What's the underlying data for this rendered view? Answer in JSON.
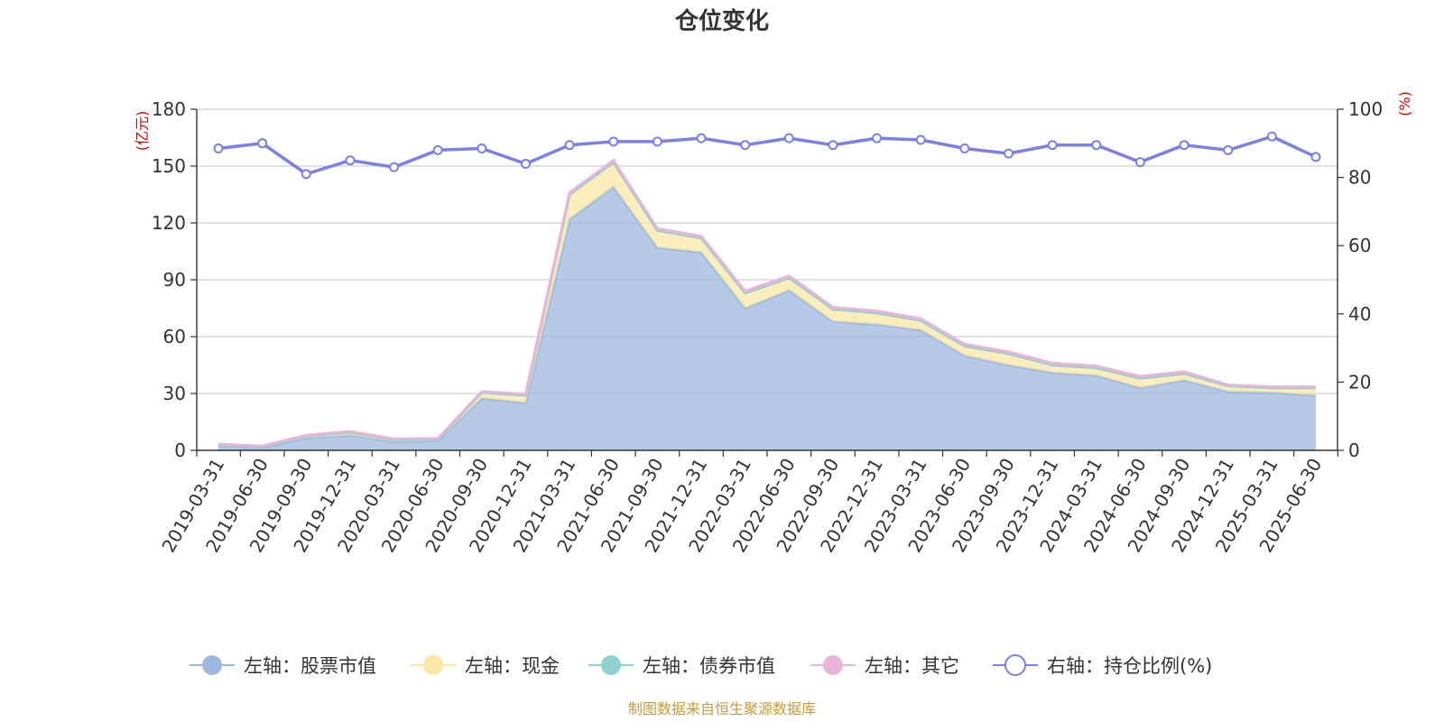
{
  "chart_data": {
    "type": "area",
    "title": "仓位变化",
    "left_unit": "(亿元)",
    "right_unit": "(%)",
    "x": [
      "2019-03-31",
      "2019-06-30",
      "2019-09-30",
      "2019-12-31",
      "2020-03-31",
      "2020-06-30",
      "2020-09-30",
      "2020-12-31",
      "2021-03-31",
      "2021-06-30",
      "2021-09-30",
      "2021-12-31",
      "2022-03-31",
      "2022-06-30",
      "2022-09-30",
      "2022-12-31",
      "2023-03-31",
      "2023-06-30",
      "2023-09-30",
      "2023-12-31",
      "2024-03-31",
      "2024-06-30",
      "2024-09-30",
      "2024-12-31",
      "2025-03-31",
      "2025-06-30"
    ],
    "left_axis": {
      "min": 0,
      "max": 180,
      "ticks": [
        "0",
        "30",
        "60",
        "90",
        "120",
        "150",
        "180"
      ]
    },
    "right_axis": {
      "min": 0,
      "max": 100,
      "ticks": [
        "0",
        "20",
        "40",
        "60",
        "80",
        "100"
      ]
    },
    "grid": true,
    "legend_position": "bottom",
    "series": [
      {
        "name": "左轴：股票市值",
        "axis": "left",
        "stack": true,
        "color": "#9db8e0",
        "values": [
          2.5,
          1.5,
          6.5,
          8,
          4.5,
          5,
          27.5,
          25,
          122,
          139,
          107,
          104.5,
          75,
          84.5,
          68,
          66.5,
          63.5,
          50,
          45,
          41,
          39.5,
          33,
          37,
          31,
          30.5,
          29
        ]
      },
      {
        "name": "左轴：现金",
        "axis": "left",
        "stack": true,
        "color": "#fbe8a6",
        "values": [
          0.5,
          0.5,
          1,
          1.5,
          1,
          0.8,
          3,
          4,
          13,
          13,
          9,
          7.5,
          8,
          6.5,
          6.5,
          6,
          5,
          5,
          6,
          4,
          4,
          5,
          3.5,
          3,
          2.5,
          4
        ]
      },
      {
        "name": "左轴：债券市值",
        "axis": "left",
        "stack": true,
        "color": "#8fd1d2",
        "values": [
          0,
          0,
          0,
          0,
          0,
          0,
          0,
          0,
          0,
          0,
          0,
          0,
          0,
          0,
          0,
          0,
          0,
          0,
          0,
          0,
          0,
          0,
          0,
          0,
          0,
          0
        ]
      },
      {
        "name": "左轴：其它",
        "axis": "left",
        "stack": true,
        "color": "#e7b5d8",
        "values": [
          0.3,
          0.3,
          0.5,
          0.5,
          0.5,
          0.5,
          0.5,
          0.7,
          1,
          1,
          1,
          1,
          1,
          1,
          1,
          1,
          1,
          1,
          1,
          1,
          1,
          1,
          1,
          0.5,
          0.5,
          0.5
        ]
      },
      {
        "name": "右轴：持仓比例(%)",
        "axis": "right",
        "type": "line",
        "color": "#7b7fe8",
        "values": [
          88.5,
          90,
          81,
          85,
          83,
          88,
          88.5,
          84,
          89.5,
          90.5,
          90.5,
          91.5,
          89.5,
          91.5,
          89.5,
          91.5,
          91,
          88.5,
          87,
          89.5,
          89.5,
          84.5,
          89.5,
          88,
          92,
          86
        ]
      }
    ]
  },
  "footer": {
    "source": "制图数据来自恒生聚源数据库"
  }
}
